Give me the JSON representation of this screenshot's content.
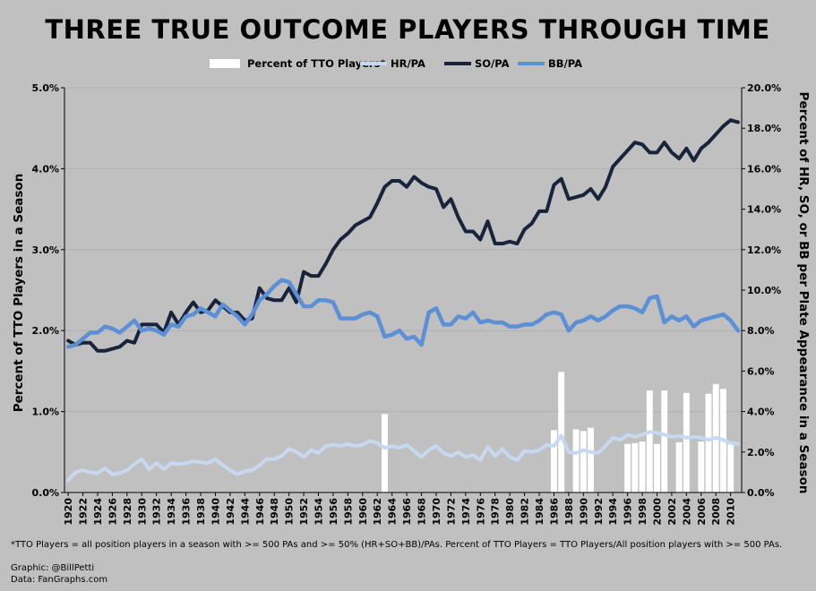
{
  "chart_data": {
    "type": "bar+line",
    "title": "THREE TRUE OUTCOME PLAYERS THROUGH TIME",
    "y_left_label": "Percent of TTO Players in a Season",
    "y_right_label": "Percent of HR, SO, or BB per Plate Appearance in a Season",
    "y_left_ticks": [
      "0.0%",
      "1.0%",
      "2.0%",
      "3.0%",
      "4.0%",
      "5.0%"
    ],
    "y_right_ticks": [
      "0.0%",
      "2.0%",
      "4.0%",
      "6.0%",
      "8.0%",
      "10.0%",
      "12.0%",
      "14.0%",
      "16.0%",
      "18.0%",
      "20.0%"
    ],
    "y_left_lim": [
      0,
      5
    ],
    "y_right_lim": [
      0,
      20
    ],
    "x_tick_labels": [
      "1920",
      "1922",
      "1924",
      "1926",
      "1928",
      "1930",
      "1932",
      "1934",
      "1936",
      "1938",
      "1940",
      "1942",
      "1944",
      "1946",
      "1948",
      "1950",
      "1952",
      "1954",
      "1956",
      "1958",
      "1960",
      "1962",
      "1964",
      "1966",
      "1968",
      "1970",
      "1972",
      "1974",
      "1976",
      "1978",
      "1980",
      "1982",
      "1984",
      "1986",
      "1988",
      "1990",
      "1992",
      "1994",
      "1996",
      "1998",
      "2000",
      "2002",
      "2004",
      "2006",
      "2008",
      "2010"
    ],
    "legend": [
      {
        "label": "Percent of TTO Players*",
        "color": "#ffffff",
        "kind": "bar"
      },
      {
        "label": "HR/PA",
        "color": "#c6d9f1",
        "kind": "line"
      },
      {
        "label": "SO/PA",
        "color": "#17243b",
        "kind": "line"
      },
      {
        "label": "BB/PA",
        "color": "#5b8fd6",
        "kind": "line"
      }
    ],
    "years": [
      1920,
      1921,
      1922,
      1923,
      1924,
      1925,
      1926,
      1927,
      1928,
      1929,
      1930,
      1931,
      1932,
      1933,
      1934,
      1935,
      1936,
      1937,
      1938,
      1939,
      1940,
      1941,
      1942,
      1943,
      1944,
      1945,
      1946,
      1947,
      1948,
      1949,
      1950,
      1951,
      1952,
      1953,
      1954,
      1955,
      1956,
      1957,
      1958,
      1959,
      1960,
      1961,
      1962,
      1963,
      1964,
      1965,
      1966,
      1967,
      1968,
      1969,
      1970,
      1971,
      1972,
      1973,
      1974,
      1975,
      1976,
      1977,
      1978,
      1979,
      1980,
      1981,
      1982,
      1983,
      1984,
      1985,
      1986,
      1987,
      1988,
      1989,
      1990,
      1991,
      1992,
      1993,
      1994,
      1995,
      1996,
      1997,
      1998,
      1999,
      2000,
      2001,
      2002,
      2003,
      2004,
      2005,
      2006,
      2007,
      2008,
      2009,
      2010,
      2011
    ],
    "series": [
      {
        "name": "Percent of TTO Players*",
        "type": "bar",
        "axis": "left",
        "values": [
          0,
          0,
          0,
          0,
          0,
          0,
          0,
          0,
          0,
          0,
          0,
          0,
          0,
          0,
          0,
          0,
          0,
          0,
          0,
          0,
          0,
          0,
          0,
          0,
          0,
          0,
          0,
          0,
          0,
          0,
          0,
          0,
          0,
          0,
          0,
          0,
          0,
          0,
          0,
          0,
          0,
          0,
          0,
          0.97,
          0,
          0,
          0,
          0,
          0,
          0,
          0,
          0,
          0,
          0,
          0,
          0,
          0,
          0,
          0,
          0,
          0,
          0,
          0,
          0,
          0,
          0,
          0.77,
          1.49,
          0,
          0.78,
          0.76,
          0.8,
          0,
          0,
          0,
          0,
          0.6,
          0.61,
          0.63,
          1.26,
          0.6,
          1.26,
          0,
          0.62,
          1.23,
          0,
          0.63,
          1.22,
          1.34,
          1.28,
          0.6,
          0
        ]
      },
      {
        "name": "HR/PA",
        "type": "line",
        "axis": "right",
        "values": [
          0.6,
          1.0,
          1.1,
          1.0,
          0.95,
          1.2,
          0.9,
          0.95,
          1.1,
          1.4,
          1.65,
          1.15,
          1.45,
          1.15,
          1.45,
          1.4,
          1.45,
          1.55,
          1.5,
          1.45,
          1.65,
          1.35,
          1.1,
          0.9,
          1.05,
          1.1,
          1.35,
          1.65,
          1.65,
          1.8,
          2.15,
          2.0,
          1.75,
          2.1,
          1.95,
          2.3,
          2.35,
          2.3,
          2.4,
          2.3,
          2.35,
          2.55,
          2.45,
          2.2,
          2.3,
          2.2,
          2.35,
          2.05,
          1.75,
          2.1,
          2.3,
          1.95,
          1.8,
          2.0,
          1.75,
          1.85,
          1.6,
          2.25,
          1.8,
          2.15,
          1.75,
          1.6,
          2.05,
          2.0,
          2.1,
          2.35,
          2.3,
          2.8,
          2.0,
          1.95,
          2.1,
          2.0,
          1.95,
          2.3,
          2.7,
          2.6,
          2.85,
          2.75,
          2.85,
          3.0,
          2.95,
          2.85,
          2.75,
          2.8,
          2.7,
          2.75,
          2.7,
          2.6,
          2.7,
          2.6,
          2.45,
          2.4
        ]
      },
      {
        "name": "SO/PA",
        "type": "line",
        "axis": "right",
        "values": [
          7.5,
          7.3,
          7.4,
          7.4,
          7.0,
          7.0,
          7.1,
          7.2,
          7.5,
          7.4,
          8.3,
          8.3,
          8.3,
          7.9,
          8.9,
          8.3,
          8.9,
          9.4,
          8.9,
          9.0,
          9.5,
          9.2,
          8.9,
          8.9,
          8.5,
          8.6,
          10.1,
          9.6,
          9.5,
          9.5,
          10.1,
          9.4,
          10.9,
          10.7,
          10.7,
          11.3,
          12.0,
          12.5,
          12.8,
          13.2,
          13.4,
          13.6,
          14.3,
          15.1,
          15.4,
          15.4,
          15.1,
          15.6,
          15.3,
          15.1,
          15.0,
          14.1,
          14.5,
          13.6,
          12.9,
          12.9,
          12.5,
          13.4,
          12.3,
          12.3,
          12.4,
          12.3,
          13.0,
          13.3,
          13.9,
          13.9,
          15.2,
          15.5,
          14.5,
          14.6,
          14.7,
          15.0,
          14.5,
          15.1,
          16.1,
          16.5,
          16.9,
          17.3,
          17.2,
          16.8,
          16.8,
          17.3,
          16.8,
          16.5,
          17.0,
          16.4,
          17.0,
          17.3,
          17.7,
          18.1,
          18.4,
          18.3
        ]
      },
      {
        "name": "BB/PA",
        "type": "line",
        "axis": "right",
        "values": [
          7.2,
          7.3,
          7.6,
          7.9,
          7.9,
          8.2,
          8.1,
          7.9,
          8.2,
          8.5,
          8.0,
          8.1,
          8.0,
          7.8,
          8.3,
          8.2,
          8.7,
          8.8,
          9.1,
          8.9,
          8.7,
          9.3,
          9.0,
          8.7,
          8.3,
          8.8,
          9.5,
          9.8,
          10.2,
          10.5,
          10.4,
          9.8,
          9.2,
          9.2,
          9.5,
          9.5,
          9.4,
          8.6,
          8.6,
          8.6,
          8.8,
          8.9,
          8.7,
          7.7,
          7.8,
          8.0,
          7.6,
          7.7,
          7.3,
          8.9,
          9.1,
          8.3,
          8.3,
          8.7,
          8.6,
          8.9,
          8.4,
          8.5,
          8.4,
          8.4,
          8.2,
          8.2,
          8.3,
          8.3,
          8.5,
          8.8,
          8.9,
          8.8,
          8.0,
          8.4,
          8.5,
          8.7,
          8.5,
          8.7,
          9.0,
          9.2,
          9.2,
          9.1,
          8.9,
          9.6,
          9.7,
          8.4,
          8.7,
          8.5,
          8.7,
          8.2,
          8.5,
          8.6,
          8.7,
          8.8,
          8.5,
          8.0
        ]
      }
    ]
  },
  "footnote": "*TTO Players = all position players in a season with >= 500 PAs and >= 50% (HR+SO+BB)/PAs. Percent of TTO Players  = TTO Players/All position players with >= 500 PAs.",
  "credit_graphic": "Graphic: @BillPetti",
  "credit_data": "Data: FanGraphs.com"
}
